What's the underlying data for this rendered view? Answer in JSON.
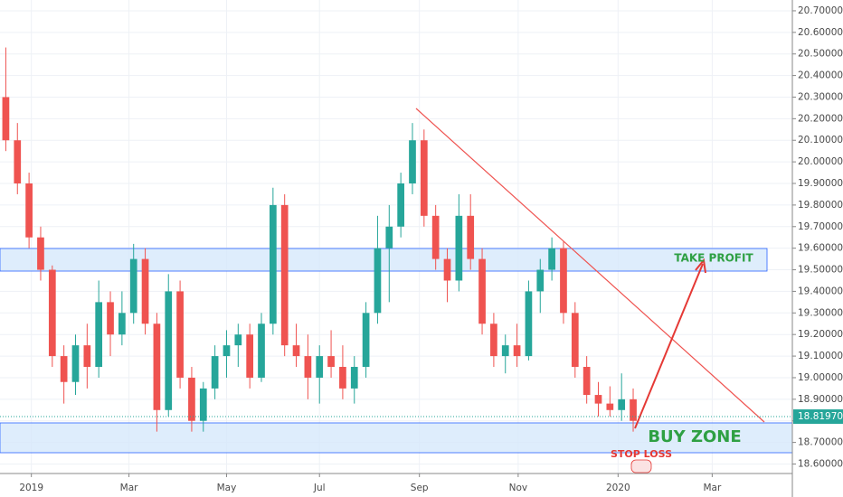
{
  "chart_data": {
    "type": "candlestick",
    "open": [
      20.3,
      20.1,
      19.9,
      19.65,
      19.5,
      19.1,
      18.98,
      19.15,
      19.05,
      19.35,
      19.2,
      19.3,
      19.55,
      19.25,
      18.85,
      19.4,
      19.0,
      18.8,
      18.95,
      19.1,
      19.15,
      19.2,
      19.0,
      19.25,
      19.8,
      19.15,
      19.1,
      19.0,
      19.1,
      19.05,
      18.95,
      19.05,
      19.3,
      19.6,
      19.7,
      19.9,
      20.1,
      19.75,
      19.55,
      19.45,
      19.75,
      19.55,
      19.25,
      19.1,
      19.15,
      19.1,
      19.4,
      19.5,
      19.6,
      19.3,
      19.05,
      18.92,
      18.88,
      18.85,
      18.9
    ],
    "high": [
      20.53,
      20.18,
      19.95,
      19.7,
      19.52,
      19.15,
      19.2,
      19.25,
      19.45,
      19.4,
      19.4,
      19.62,
      19.6,
      19.3,
      19.48,
      19.45,
      19.05,
      18.98,
      19.15,
      19.22,
      19.25,
      19.25,
      19.3,
      19.88,
      19.85,
      19.25,
      19.2,
      19.15,
      19.22,
      19.15,
      19.1,
      19.35,
      19.75,
      19.8,
      19.95,
      20.18,
      20.15,
      19.8,
      19.6,
      19.85,
      19.85,
      19.6,
      19.3,
      19.2,
      19.25,
      19.45,
      19.55,
      19.65,
      19.63,
      19.35,
      19.1,
      18.98,
      18.96,
      19.02,
      18.95
    ],
    "low": [
      20.05,
      19.85,
      19.6,
      19.45,
      19.05,
      18.88,
      18.92,
      18.95,
      19.0,
      19.1,
      19.15,
      19.25,
      19.2,
      18.75,
      18.82,
      18.95,
      18.75,
      18.75,
      18.9,
      19.0,
      19.05,
      18.95,
      18.98,
      19.2,
      19.1,
      19.05,
      18.9,
      18.88,
      19.0,
      18.9,
      18.88,
      19.0,
      19.25,
      19.35,
      19.65,
      19.85,
      19.7,
      19.5,
      19.35,
      19.4,
      19.5,
      19.2,
      19.05,
      19.02,
      19.05,
      19.08,
      19.3,
      19.45,
      19.25,
      19.0,
      18.88,
      18.82,
      18.82,
      18.8,
      18.75
    ],
    "close": [
      20.1,
      19.9,
      19.65,
      19.5,
      19.1,
      18.98,
      19.15,
      19.05,
      19.35,
      19.2,
      19.3,
      19.55,
      19.25,
      18.85,
      19.4,
      19.0,
      18.8,
      18.95,
      19.1,
      19.15,
      19.2,
      19.0,
      19.25,
      19.8,
      19.15,
      19.1,
      19.0,
      19.1,
      19.05,
      18.95,
      19.05,
      19.3,
      19.6,
      19.7,
      19.9,
      20.1,
      19.75,
      19.55,
      19.45,
      19.75,
      19.55,
      19.25,
      19.1,
      19.15,
      19.1,
      19.4,
      19.5,
      19.6,
      19.3,
      19.05,
      18.92,
      18.88,
      18.85,
      18.9,
      18.8
    ],
    "up_color": "#26a69a",
    "down_color": "#ef5350",
    "xlim": [
      -0.5,
      67.7
    ],
    "xticks": [
      {
        "value": 2.2,
        "label": "2019"
      },
      {
        "value": 10.6,
        "label": "Mar"
      },
      {
        "value": 19.0,
        "label": "May"
      },
      {
        "value": 27.0,
        "label": "Jul"
      },
      {
        "value": 35.6,
        "label": "Sep"
      },
      {
        "value": 44.1,
        "label": "Nov"
      },
      {
        "value": 52.7,
        "label": "2020"
      },
      {
        "value": 60.8,
        "label": "Mar"
      }
    ],
    "ylim": [
      18.556,
      20.75
    ],
    "yticks": [
      {
        "value": 18.6,
        "label": "18.60000"
      },
      {
        "value": 18.7,
        "label": "18.70000"
      },
      {
        "value": 18.8,
        "label": "18.80000"
      },
      {
        "value": 18.9,
        "label": "18.90000"
      },
      {
        "value": 19.0,
        "label": "19.00000"
      },
      {
        "value": 19.1,
        "label": "19.10000"
      },
      {
        "value": 19.2,
        "label": "19.20000"
      },
      {
        "value": 19.3,
        "label": "19.30000"
      },
      {
        "value": 19.4,
        "label": "19.40000"
      },
      {
        "value": 19.5,
        "label": "19.50000"
      },
      {
        "value": 19.6,
        "label": "19.60000"
      },
      {
        "value": 19.7,
        "label": "19.70000"
      },
      {
        "value": 19.8,
        "label": "19.80000"
      },
      {
        "value": 19.9,
        "label": "19.90000"
      },
      {
        "value": 20.0,
        "label": "20.00000"
      },
      {
        "value": 20.1,
        "label": "20.10000"
      },
      {
        "value": 20.2,
        "label": "20.20000"
      },
      {
        "value": 20.3,
        "label": "20.30000"
      },
      {
        "value": 20.4,
        "label": "20.40000"
      },
      {
        "value": 20.5,
        "label": "20.50000"
      },
      {
        "value": 20.6,
        "label": "20.60000"
      },
      {
        "value": 20.7,
        "label": "20.70000"
      }
    ],
    "grid": true,
    "last_price": {
      "value": 18.8197,
      "label": "18.81970"
    },
    "annotations": {
      "take_profit": "TAKE PROFIT",
      "buy_zone": "BUY ZONE",
      "stop_loss": "STOP LOSS"
    }
  }
}
